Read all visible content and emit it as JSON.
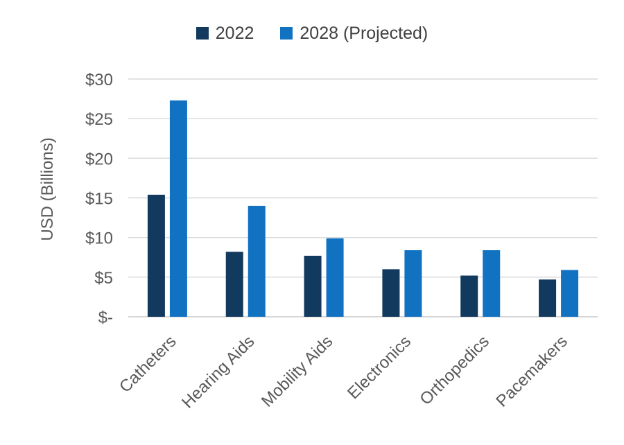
{
  "chart_data": {
    "type": "bar",
    "title": "",
    "xlabel": "",
    "ylabel": "USD (Billions)",
    "categories": [
      "Catheters",
      "Hearing Aids",
      "Mobility Aids",
      "Electronics",
      "Orthopedics",
      "Pacemakers"
    ],
    "series": [
      {
        "name": "2022",
        "color": "#12395E",
        "values": [
          15.4,
          8.2,
          7.7,
          6.0,
          5.2,
          4.7
        ]
      },
      {
        "name": "2028 (Projected)",
        "color": "#1272C2",
        "values": [
          27.3,
          14.0,
          9.9,
          8.4,
          8.4,
          5.9
        ]
      }
    ],
    "ylim": [
      0,
      30
    ],
    "ytick_interval": 5,
    "ytick_labels": [
      "$-",
      "$5",
      "$10",
      "$15",
      "$20",
      "$25",
      "$30"
    ],
    "grid": true,
    "legend_position": "top-center",
    "colors": {
      "background": "#FFFFFF",
      "axis_text": "#595959",
      "legend_text": "#404040",
      "gridline": "#D9D9D9",
      "axis_line": "#C9C9C9"
    }
  }
}
